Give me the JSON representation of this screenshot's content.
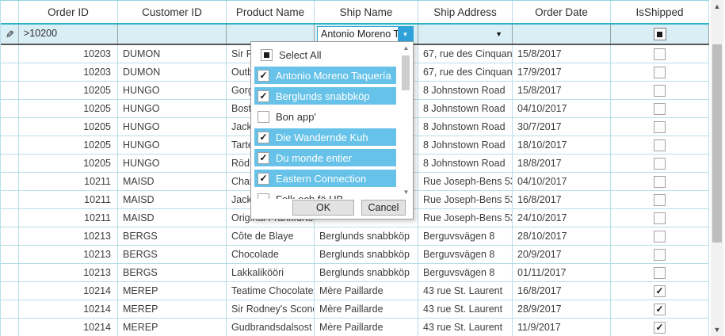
{
  "grid": {
    "columns": [
      {
        "label": "Order ID"
      },
      {
        "label": "Customer ID"
      },
      {
        "label": "Product Name"
      },
      {
        "label": "Ship Name"
      },
      {
        "label": "Ship Address"
      },
      {
        "label": "Order Date"
      },
      {
        "label": "IsShipped"
      }
    ],
    "filter_row": {
      "order_id_filter": ">10200",
      "customer_id_filter": "",
      "product_name_filter": "",
      "ship_name_filter_value": "Antonio Moreno Taquería",
      "ship_address_filter": "",
      "order_date_filter": "",
      "is_shipped_filter_state": "indeterminate"
    },
    "rows": [
      {
        "order_id": "10203",
        "customer_id": "DUMON",
        "product_name": "Sir Rodney's Scones",
        "ship_name": "",
        "ship_address": "67, rue des Cinquante Otages",
        "order_date": "15/8/2017",
        "is_shipped": false
      },
      {
        "order_id": "10203",
        "customer_id": "DUMON",
        "product_name": "Outback Lager",
        "ship_name": "",
        "ship_address": "67, rue des Cinquante Otages",
        "order_date": "17/9/2017",
        "is_shipped": false
      },
      {
        "order_id": "10205",
        "customer_id": "HUNGO",
        "product_name": "Gorgonzola Telino",
        "ship_name": "",
        "ship_address": "8 Johnstown Road",
        "order_date": "15/8/2017",
        "is_shipped": false
      },
      {
        "order_id": "10205",
        "customer_id": "HUNGO",
        "product_name": "Boston Crab Meat",
        "ship_name": "",
        "ship_address": "8 Johnstown Road",
        "order_date": "04/10/2017",
        "is_shipped": false
      },
      {
        "order_id": "10205",
        "customer_id": "HUNGO",
        "product_name": "Jack's New England Clam Chowder",
        "ship_name": "",
        "ship_address": "8 Johnstown Road",
        "order_date": "30/7/2017",
        "is_shipped": false
      },
      {
        "order_id": "10205",
        "customer_id": "HUNGO",
        "product_name": "Tarte au sucre",
        "ship_name": "",
        "ship_address": "8 Johnstown Road",
        "order_date": "18/10/2017",
        "is_shipped": false
      },
      {
        "order_id": "10205",
        "customer_id": "HUNGO",
        "product_name": "Röd Kaviar",
        "ship_name": "",
        "ship_address": "8 Johnstown Road",
        "order_date": "18/8/2017",
        "is_shipped": false
      },
      {
        "order_id": "10211",
        "customer_id": "MAISD",
        "product_name": "Chartreuse verte",
        "ship_name": "",
        "ship_address": "Rue Joseph-Bens 532",
        "order_date": "04/10/2017",
        "is_shipped": false
      },
      {
        "order_id": "10211",
        "customer_id": "MAISD",
        "product_name": "Jack's New England Clam Chowder",
        "ship_name": "",
        "ship_address": "Rue Joseph-Bens 532",
        "order_date": "16/8/2017",
        "is_shipped": false
      },
      {
        "order_id": "10211",
        "customer_id": "MAISD",
        "product_name": "Original Frankfurter grüne Soße",
        "ship_name": "",
        "ship_address": "Rue Joseph-Bens 532",
        "order_date": "24/10/2017",
        "is_shipped": false
      },
      {
        "order_id": "10213",
        "customer_id": "BERGS",
        "product_name": "Côte de Blaye",
        "ship_name": "Berglunds snabbköp",
        "ship_address": "Berguvsvägen 8",
        "order_date": "28/10/2017",
        "is_shipped": false
      },
      {
        "order_id": "10213",
        "customer_id": "BERGS",
        "product_name": "Chocolade",
        "ship_name": "Berglunds snabbköp",
        "ship_address": "Berguvsvägen 8",
        "order_date": "20/9/2017",
        "is_shipped": false
      },
      {
        "order_id": "10213",
        "customer_id": "BERGS",
        "product_name": "Lakkalikööri",
        "ship_name": "Berglunds snabbköp",
        "ship_address": "Berguvsvägen 8",
        "order_date": "01/11/2017",
        "is_shipped": false
      },
      {
        "order_id": "10214",
        "customer_id": "MEREP",
        "product_name": "Teatime Chocolate Biscuits",
        "ship_name": "Mère Paillarde",
        "ship_address": "43 rue St. Laurent",
        "order_date": "16/8/2017",
        "is_shipped": true
      },
      {
        "order_id": "10214",
        "customer_id": "MEREP",
        "product_name": "Sir Rodney's Scones",
        "ship_name": "Mère Paillarde",
        "ship_address": "43 rue St. Laurent",
        "order_date": "28/9/2017",
        "is_shipped": true
      },
      {
        "order_id": "10214",
        "customer_id": "MEREP",
        "product_name": "Gudbrandsdalsost",
        "ship_name": "Mère Paillarde",
        "ship_address": "43 rue St. Laurent",
        "order_date": "11/9/2017",
        "is_shipped": true
      }
    ]
  },
  "filter_popup": {
    "select_all_label": "Select All",
    "select_all_state": "indeterminate",
    "items": [
      {
        "label": "Antonio Moreno Taquería",
        "checked": true,
        "highlighted": true
      },
      {
        "label": "Berglunds snabbköp",
        "checked": true,
        "highlighted": true
      },
      {
        "label": "Bon app'",
        "checked": false,
        "highlighted": false
      },
      {
        "label": "Die Wandernde Kuh",
        "checked": true,
        "highlighted": true
      },
      {
        "label": "Du monde entier",
        "checked": true,
        "highlighted": true
      },
      {
        "label": "Eastern Connection",
        "checked": true,
        "highlighted": true
      },
      {
        "label": "Folk och fä HB",
        "checked": false,
        "highlighted": false
      }
    ],
    "ok_label": "OK",
    "cancel_label": "Cancel"
  },
  "icons": {
    "edit_pencil": "✎",
    "dropdown_arrow": "▼",
    "checkmark": "✓",
    "scroll_up": "▲",
    "scroll_down": "▼"
  },
  "colors": {
    "header_underline": "#2db4cc",
    "grid_line": "#b7dfe9",
    "filter_row_bg": "#daeef5",
    "selection_highlight": "#66c2e8",
    "combo_button_blue": "#2fa2d9",
    "button_bg": "#e2e2e2",
    "button_border": "#acacac"
  }
}
